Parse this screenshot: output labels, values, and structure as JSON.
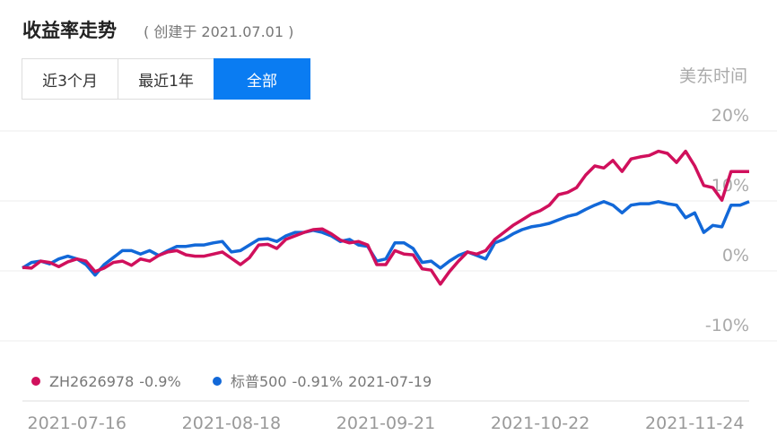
{
  "title": "收益率走势",
  "subtitle": "( 创建于 2021.07.01 )",
  "buttons": [
    "近3个月",
    "最近1年",
    "全部"
  ],
  "active_button": 2,
  "timezone_label": "美东时间",
  "chart_data": {
    "type": "line",
    "categories": [
      null,
      null,
      null,
      null,
      null,
      null,
      "2021-07-16",
      null,
      null,
      null,
      null,
      null,
      null,
      null,
      null,
      null,
      null,
      null,
      null,
      null,
      null,
      null,
      null,
      "2021-08-18",
      null,
      null,
      null,
      null,
      null,
      null,
      null,
      null,
      null,
      null,
      null,
      null,
      null,
      null,
      null,
      null,
      "2021-09-21",
      null,
      null,
      null,
      null,
      null,
      null,
      null,
      null,
      null,
      null,
      null,
      null,
      null,
      null,
      null,
      null,
      "2021-10-22",
      null,
      null,
      null,
      null,
      null,
      null,
      null,
      null,
      null,
      null,
      null,
      null,
      null,
      null,
      null,
      null,
      "2021-11-24",
      null,
      null,
      null,
      null,
      null,
      null
    ],
    "series": [
      {
        "name": "ZH2626978",
        "legend_value": "-0.9%",
        "color": "#d0105c",
        "values": [
          0.5,
          0.4,
          1.4,
          1.2,
          0.6,
          1.3,
          1.7,
          1.4,
          -0.1,
          0.4,
          1.2,
          1.4,
          0.8,
          1.7,
          1.4,
          2.2,
          2.7,
          2.9,
          2.3,
          2.1,
          2.1,
          2.4,
          2.7,
          1.8,
          0.9,
          1.9,
          3.7,
          3.8,
          3.2,
          4.5,
          5.0,
          5.5,
          5.9,
          6.0,
          5.3,
          4.4,
          4.0,
          4.2,
          3.7,
          0.9,
          0.9,
          2.9,
          2.4,
          2.3,
          0.3,
          0.1,
          -1.9,
          -0.1,
          1.4,
          2.7,
          2.4,
          2.9,
          4.5,
          5.5,
          6.5,
          7.3,
          8.1,
          8.6,
          9.4,
          10.9,
          11.2,
          11.9,
          13.7,
          15.0,
          14.7,
          15.8,
          14.2,
          16.0,
          16.3,
          16.5,
          17.1,
          16.8,
          15.5,
          17.1,
          15.0,
          12.2,
          11.9,
          10.1,
          14.2,
          14.2,
          14.2
        ]
      },
      {
        "name": "标普500",
        "legend_value": "-0.91%",
        "color": "#1268d8",
        "values": [
          0.4,
          1.2,
          1.4,
          1.0,
          1.7,
          2.1,
          1.7,
          0.9,
          -0.6,
          0.9,
          1.9,
          2.9,
          2.9,
          2.4,
          2.9,
          2.2,
          2.9,
          3.5,
          3.5,
          3.7,
          3.7,
          4.0,
          4.2,
          2.7,
          2.9,
          3.7,
          4.5,
          4.6,
          4.2,
          5.0,
          5.5,
          5.5,
          5.8,
          5.5,
          5.0,
          4.2,
          4.5,
          3.7,
          3.5,
          1.4,
          1.7,
          4.0,
          4.0,
          3.2,
          1.2,
          1.4,
          0.4,
          1.4,
          2.2,
          2.7,
          2.2,
          1.7,
          4.0,
          4.5,
          5.3,
          5.9,
          6.3,
          6.5,
          6.8,
          7.3,
          7.8,
          8.1,
          8.8,
          9.4,
          9.9,
          9.4,
          8.3,
          9.4,
          9.6,
          9.6,
          9.9,
          9.6,
          9.4,
          7.6,
          8.3,
          5.5,
          6.5,
          6.3,
          9.4,
          9.4,
          9.9
        ]
      }
    ],
    "legend_date": "2021-07-19",
    "ylim": [
      -10,
      20
    ],
    "yticks": [
      {
        "value": 20,
        "label": "20%"
      },
      {
        "value": 10,
        "label": "10%"
      },
      {
        "value": 0,
        "label": "0%"
      },
      {
        "value": -10,
        "label": "-10%"
      }
    ],
    "grid": true
  }
}
